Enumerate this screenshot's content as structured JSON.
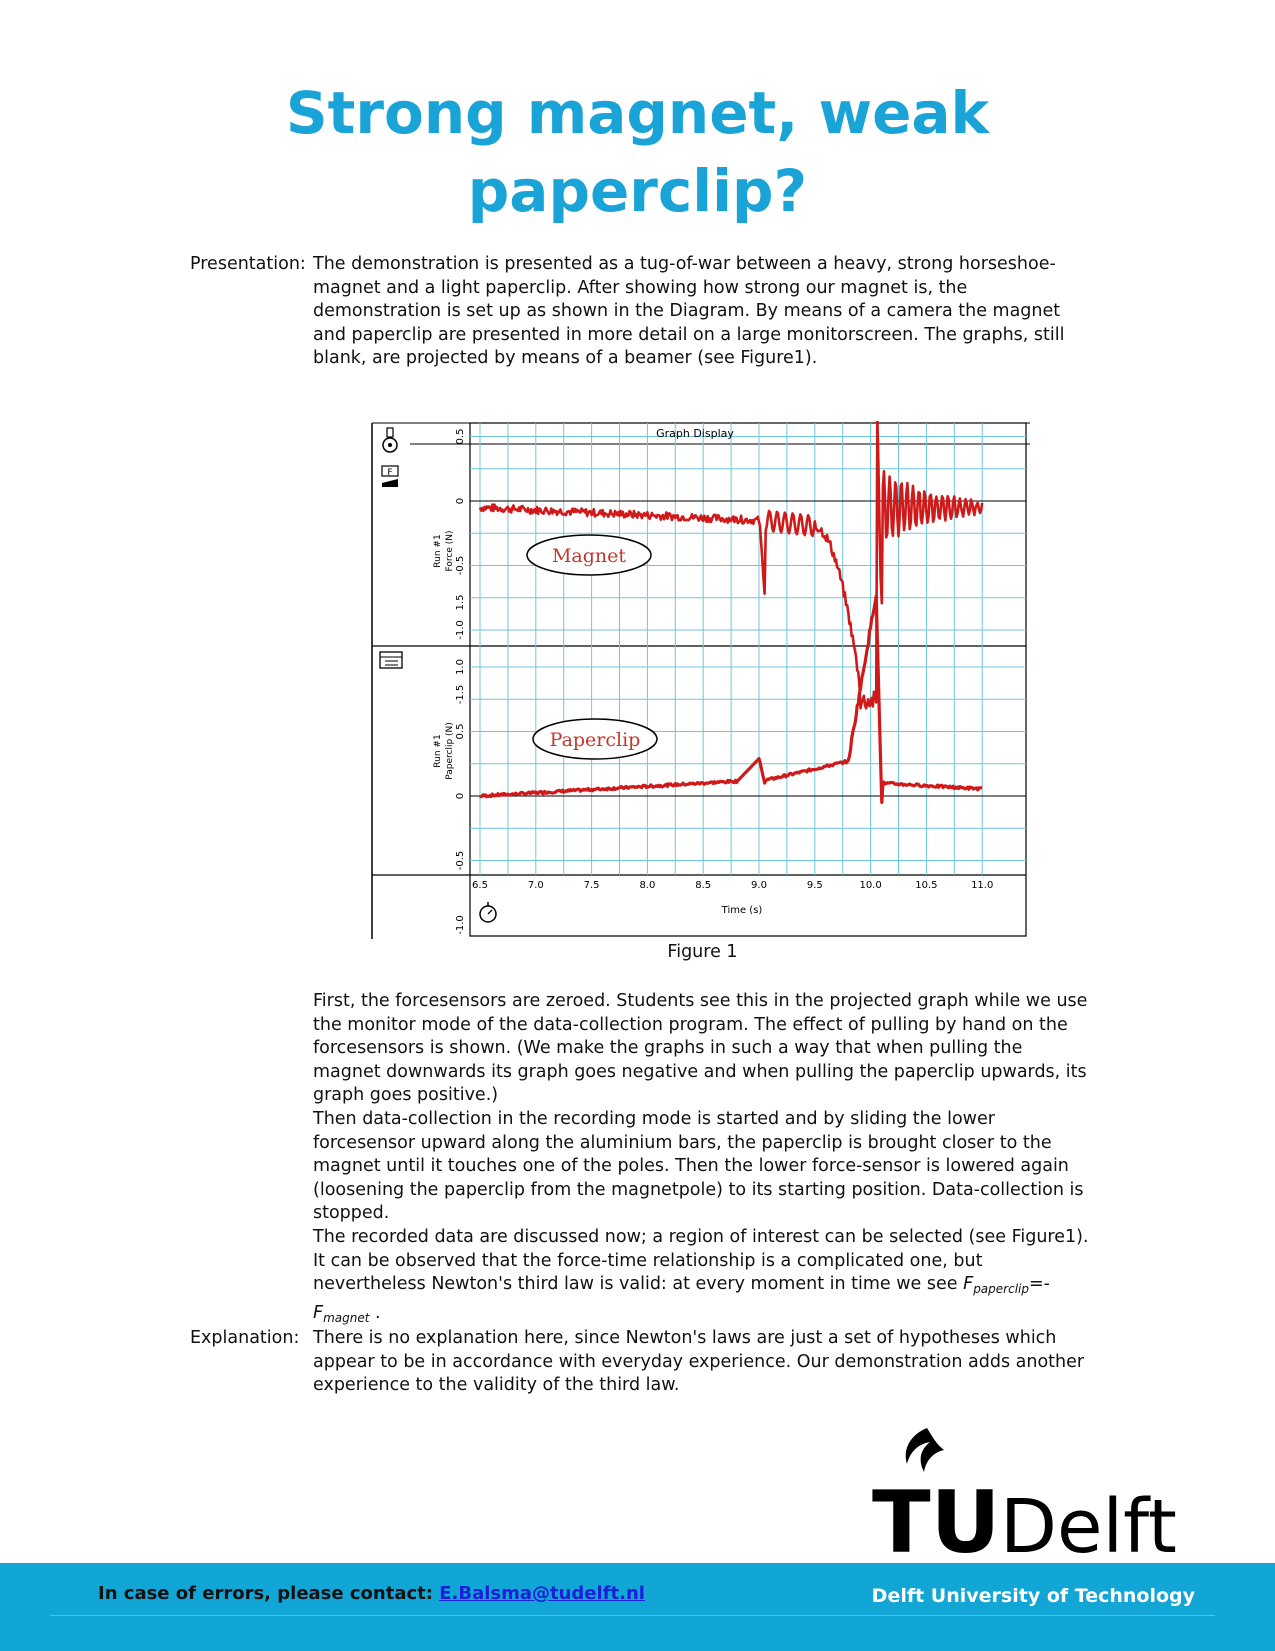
{
  "title": {
    "line1": "Strong magnet, weak",
    "line2": "paperclip?"
  },
  "presentation": {
    "label": "Presentation:",
    "text": "The demonstration is presented as a tug-of-war between a heavy, strong horseshoe-magnet and a light paperclip. After showing how strong our magnet is, the demonstration is set up as shown in the Diagram. By means of a camera the magnet and paperclip are presented in more detail on a large monitorscreen. The graphs, still blank, are projected by means of a beamer (see Figure1)."
  },
  "figure": {
    "caption": "Figure 1",
    "panel_title": "Graph Display",
    "xlabel": "Time (s)",
    "top_ylabel_1": "Run #1",
    "top_ylabel_2": "Force (N)",
    "bottom_ylabel_1": "Run #1",
    "bottom_ylabel_2": "Paperclip (N)",
    "top_annotation": "Magnet",
    "bottom_annotation": "Paperclip",
    "x_ticks": [
      "6.5",
      "7.0",
      "7.5",
      "8.0",
      "8.5",
      "9.0",
      "9.5",
      "10.0",
      "10.5",
      "11.0"
    ],
    "top_y_ticks": [
      "1.0",
      "0.5",
      "0",
      "-0.5",
      "-1.0",
      "-1.5"
    ],
    "bottom_y_ticks": [
      "1.5",
      "1.0",
      "0.5",
      "0",
      "-0.5",
      "-1.0"
    ],
    "trace_color": "#d01a1a",
    "grid_color": "#6cc7dc"
  },
  "body": {
    "p1": "First, the forcesensors are zeroed. Students see this in the projected graph while we use the monitor mode of the data-collection program. The effect of pulling by hand on the forcesensors is shown. (We make the graphs in such a way that when pulling the magnet downwards its graph goes negative and when pulling the paperclip upwards, its graph goes positive.)",
    "p2": "Then data-collection in the recording mode is started and by sliding the lower forcesensor upward along the aluminium bars, the paperclip is brought closer to the magnet until it touches one of the poles. Then the lower force-sensor is lowered again (loosening the paperclip from the magnetpole) to its starting position. Data-collection is stopped.",
    "p3_start": "The recorded data are discussed now; a region of interest can be selected (see Figure1). It can be observed that the force-time relationship is a complicated one, but nevertheless Newton's third law is valid: at every moment in time we see ",
    "f1": "F",
    "f1_sub": "paperclip",
    "eq": "=-",
    "f2": "F",
    "f2_sub": "magnet",
    "p3_end": " ."
  },
  "explanation": {
    "label": "Explanation:",
    "text": "There is no explanation here, since Newton's laws are just a set of hypotheses which appear to be in accordance with everyday experience. Our demonstration adds another experience to the validity of the third law."
  },
  "logo": {
    "tu": "TU",
    "delft": "Delft"
  },
  "footer": {
    "contact_label": "In case of errors, please contact: ",
    "contact_email": "E.Balsma@tudelft.nl",
    "university": "Delft University of Technology"
  }
}
